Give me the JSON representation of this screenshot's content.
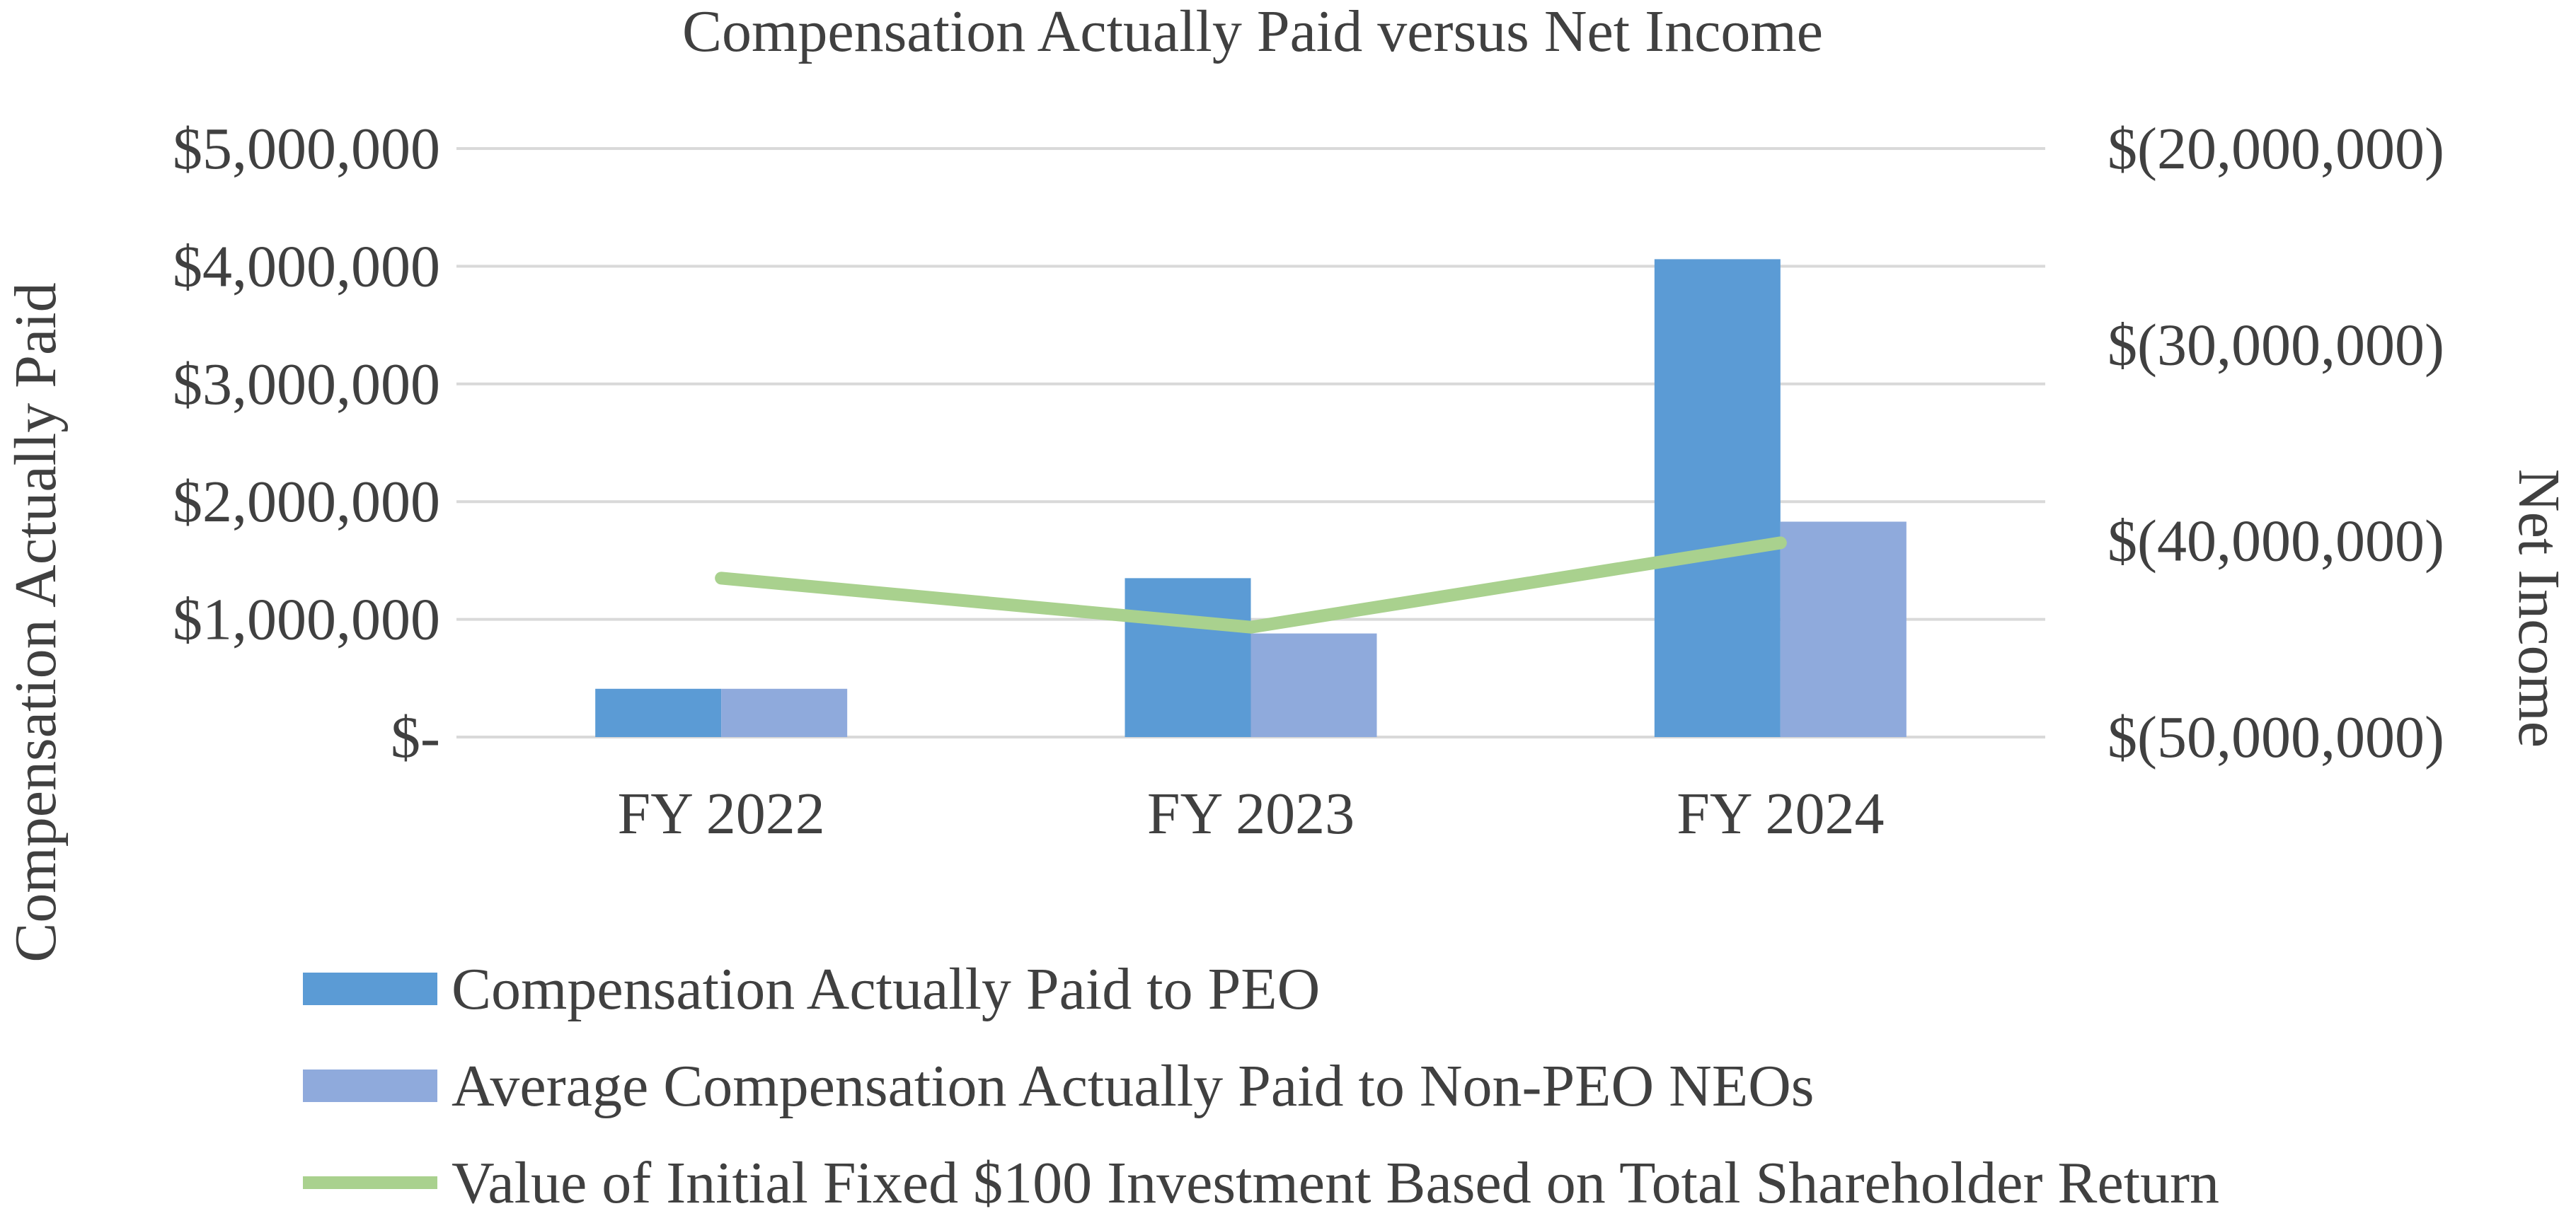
{
  "chart_data": {
    "type": "bar",
    "title": "Compensation Actually Paid versus Net Income",
    "categories": [
      "FY 2022",
      "FY 2023",
      "FY 2024"
    ],
    "ylabel": "Compensation Actually Paid",
    "y2label": "Net Income",
    "ylim": [
      0,
      5000000
    ],
    "y2lim": [
      -50000000,
      -20000000
    ],
    "y_ticks": [
      "$-",
      "$1,000,000",
      "$2,000,000",
      "$3,000,000",
      "$4,000,000",
      "$5,000,000"
    ],
    "y2_ticks": [
      "$(50,000,000)",
      "$(40,000,000)",
      "$(30,000,000)",
      "$(20,000,000)"
    ],
    "grid": true,
    "legend_position": "bottom",
    "series": [
      {
        "name": "Compensation Actually Paid to PEO",
        "type": "bar",
        "axis": "left",
        "color": "#5b9bd5",
        "values": [
          410000,
          1350000,
          4060000
        ]
      },
      {
        "name": "Average Compensation Actually Paid to Non-PEO NEOs",
        "type": "bar",
        "axis": "left",
        "color": "#8faadc",
        "values": [
          410000,
          880000,
          1830000
        ]
      },
      {
        "name": "Value of Initial Fixed $100 Investment Based on Total Shareholder Return",
        "type": "line",
        "axis": "right",
        "color": "#a9d18e",
        "values": [
          -41900000,
          -44400000,
          -40100000
        ]
      }
    ]
  }
}
